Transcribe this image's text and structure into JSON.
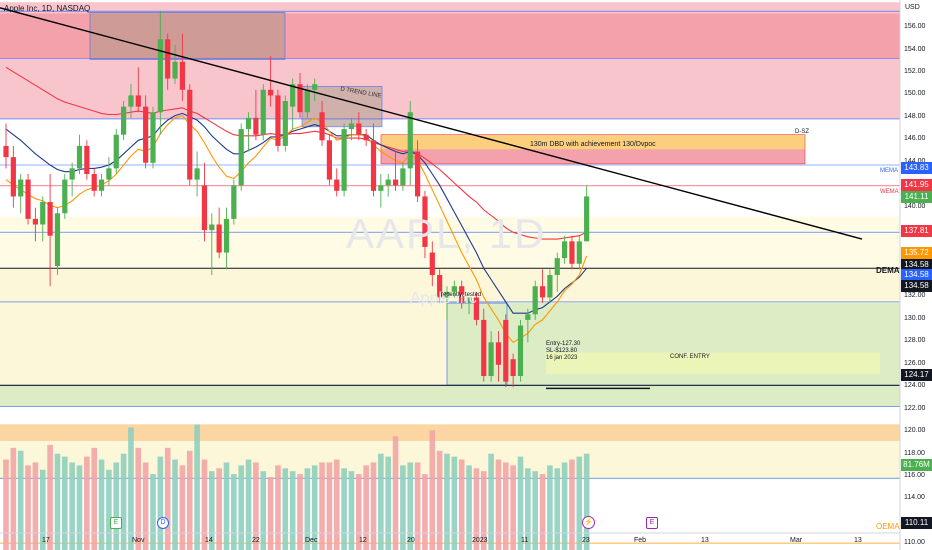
{
  "header": {
    "symbol_title": "Apple Inc, 1D, NASDAQ",
    "currency": "USD"
  },
  "watermark": {
    "ticker": "AAPL, 1D",
    "sub": "Apple Inc"
  },
  "price_axis": {
    "ticks": [
      "156.00",
      "154.00",
      "152.00",
      "150.00",
      "148.00",
      "146.00",
      "144.00",
      "142.00",
      "140.00",
      "138.00",
      "136.00",
      "134.00",
      "132.00",
      "130.00",
      "128.00",
      "126.00",
      "124.00",
      "122.00",
      "120.00",
      "118.00",
      "116.00",
      "114.00",
      "112.00",
      "110.00"
    ]
  },
  "time_axis": {
    "ticks": [
      "17",
      "Nov",
      "14",
      "22",
      "Dec",
      "12",
      "20",
      "2023",
      "11",
      "23",
      "Feb",
      "13",
      "Mar",
      "13"
    ]
  },
  "annotations": {
    "trend_line": "D TREND LINE",
    "dbd_zone": "130m DBD with achievement 130/Dvpoc",
    "dsz": "D-SZ",
    "recently_tested": "recently, tested",
    "entry": "Entry-127.30",
    "sl": "SL-$123.80",
    "date": "16 jan 2023",
    "conf_entry": "CONF. ENTRY",
    "dema": "DEMA",
    "mema": "MEMA",
    "wema": "WEMA",
    "oema": "OEMA"
  },
  "price_tags": [
    {
      "value": "143.83",
      "color": "#2962ff"
    },
    {
      "value": "141.95",
      "color": "#f23645"
    },
    {
      "value": "141.11",
      "color": "#4caf50"
    },
    {
      "value": "137.81",
      "color": "#f23645"
    },
    {
      "value": "135.72",
      "color": "#ff9800"
    },
    {
      "value": "134.58",
      "color": "#131722"
    },
    {
      "value": "134.58",
      "color": "#2962ff"
    },
    {
      "value": "134.58",
      "color": "#131722"
    },
    {
      "value": "124.17",
      "color": "#131722"
    },
    {
      "value": "81.76M",
      "color": "#4caf50"
    },
    {
      "value": "110.11",
      "color": "#131722"
    }
  ],
  "event_markers": [
    "E",
    "D",
    "E"
  ],
  "colors": {
    "up": "#4caf50",
    "down": "#f23645",
    "trend": "#000000",
    "ema_fast": "#ff9800",
    "ema_slow": "#1e3a8a",
    "ema_red": "#f23645"
  },
  "chart_data": {
    "type": "candlestick",
    "title": "Apple Inc, 1D, NASDAQ",
    "candles": [
      {
        "o": 145.5,
        "h": 147.5,
        "l": 143.5,
        "c": 144.5
      },
      {
        "o": 144.5,
        "h": 145.5,
        "l": 140.0,
        "c": 141.0
      },
      {
        "o": 141.0,
        "h": 143.0,
        "l": 139.5,
        "c": 142.5
      },
      {
        "o": 142.5,
        "h": 143.0,
        "l": 138.5,
        "c": 139.0
      },
      {
        "o": 139.0,
        "h": 140.0,
        "l": 137.0,
        "c": 138.5
      },
      {
        "o": 138.5,
        "h": 141.0,
        "l": 137.0,
        "c": 140.5
      },
      {
        "o": 140.5,
        "h": 143.0,
        "l": 133.0,
        "c": 137.5
      },
      {
        "o": 134.8,
        "h": 140.0,
        "l": 134.0,
        "c": 139.5
      },
      {
        "o": 139.5,
        "h": 143.0,
        "l": 139.0,
        "c": 142.5
      },
      {
        "o": 142.5,
        "h": 144.0,
        "l": 141.0,
        "c": 143.5
      },
      {
        "o": 143.5,
        "h": 146.5,
        "l": 143.0,
        "c": 145.5
      },
      {
        "o": 145.5,
        "h": 146.0,
        "l": 142.5,
        "c": 143.0
      },
      {
        "o": 143.0,
        "h": 143.5,
        "l": 141.0,
        "c": 141.5
      },
      {
        "o": 141.5,
        "h": 143.0,
        "l": 141.0,
        "c": 142.5
      },
      {
        "o": 142.5,
        "h": 144.5,
        "l": 142.0,
        "c": 143.5
      },
      {
        "o": 143.5,
        "h": 147.0,
        "l": 143.0,
        "c": 146.5
      },
      {
        "o": 146.5,
        "h": 149.5,
        "l": 146.0,
        "c": 149.0
      },
      {
        "o": 149.0,
        "h": 151.0,
        "l": 148.0,
        "c": 150.0
      },
      {
        "o": 150.0,
        "h": 152.5,
        "l": 148.5,
        "c": 149.0
      },
      {
        "o": 149.0,
        "h": 150.0,
        "l": 143.5,
        "c": 144.0
      },
      {
        "o": 144.0,
        "h": 149.0,
        "l": 143.5,
        "c": 148.5
      },
      {
        "o": 148.5,
        "h": 157.5,
        "l": 146.5,
        "c": 155.0
      },
      {
        "o": 155.0,
        "h": 155.5,
        "l": 150.5,
        "c": 151.5
      },
      {
        "o": 151.5,
        "h": 154.5,
        "l": 151.0,
        "c": 153.0
      },
      {
        "o": 153.0,
        "h": 155.5,
        "l": 149.5,
        "c": 150.5
      },
      {
        "o": 150.5,
        "h": 151.0,
        "l": 142.0,
        "c": 142.5
      },
      {
        "o": 142.5,
        "h": 145.0,
        "l": 141.0,
        "c": 143.5
      },
      {
        "o": 142.0,
        "h": 144.0,
        "l": 137.0,
        "c": 138.0
      },
      {
        "o": 138.0,
        "h": 139.5,
        "l": 134.0,
        "c": 138.5
      },
      {
        "o": 138.5,
        "h": 140.0,
        "l": 135.5,
        "c": 136.0
      },
      {
        "o": 136.0,
        "h": 140.0,
        "l": 134.5,
        "c": 139.0
      },
      {
        "o": 139.0,
        "h": 142.5,
        "l": 138.5,
        "c": 142.0
      },
      {
        "o": 142.0,
        "h": 147.5,
        "l": 141.5,
        "c": 147.0
      },
      {
        "o": 147.0,
        "h": 148.5,
        "l": 145.0,
        "c": 148.0
      },
      {
        "o": 148.0,
        "h": 150.5,
        "l": 146.0,
        "c": 146.5
      },
      {
        "o": 146.5,
        "h": 151.0,
        "l": 146.0,
        "c": 150.5
      },
      {
        "o": 150.5,
        "h": 153.5,
        "l": 149.0,
        "c": 150.0
      },
      {
        "o": 150.0,
        "h": 150.5,
        "l": 145.0,
        "c": 145.5
      },
      {
        "o": 145.5,
        "h": 150.0,
        "l": 145.0,
        "c": 149.5
      },
      {
        "o": 149.0,
        "h": 151.5,
        "l": 147.0,
        "c": 151.0
      },
      {
        "o": 151.0,
        "h": 152.0,
        "l": 148.0,
        "c": 148.5
      },
      {
        "o": 148.5,
        "h": 151.0,
        "l": 148.0,
        "c": 150.5
      },
      {
        "o": 150.5,
        "h": 151.5,
        "l": 149.5,
        "c": 151.0
      },
      {
        "o": 148.5,
        "h": 149.5,
        "l": 145.5,
        "c": 146.0
      },
      {
        "o": 146.0,
        "h": 146.5,
        "l": 142.0,
        "c": 142.5
      },
      {
        "o": 142.5,
        "h": 143.5,
        "l": 141.0,
        "c": 141.5
      },
      {
        "o": 141.5,
        "h": 147.5,
        "l": 141.0,
        "c": 147.0
      },
      {
        "o": 147.0,
        "h": 148.0,
        "l": 146.0,
        "c": 147.5
      },
      {
        "o": 147.5,
        "h": 148.5,
        "l": 146.0,
        "c": 146.5
      },
      {
        "o": 146.5,
        "h": 147.0,
        "l": 145.5,
        "c": 146.0
      },
      {
        "o": 146.0,
        "h": 147.5,
        "l": 141.0,
        "c": 141.5
      },
      {
        "o": 141.5,
        "h": 143.0,
        "l": 140.0,
        "c": 142.0
      },
      {
        "o": 142.0,
        "h": 143.0,
        "l": 141.0,
        "c": 142.5
      },
      {
        "o": 142.5,
        "h": 145.0,
        "l": 141.5,
        "c": 142.0
      },
      {
        "o": 142.0,
        "h": 144.0,
        "l": 141.5,
        "c": 143.5
      },
      {
        "o": 143.5,
        "h": 149.5,
        "l": 142.0,
        "c": 148.5
      },
      {
        "o": 145.0,
        "h": 146.0,
        "l": 140.5,
        "c": 141.0
      },
      {
        "o": 141.0,
        "h": 141.5,
        "l": 135.5,
        "c": 136.5
      },
      {
        "o": 136.0,
        "h": 137.0,
        "l": 133.0,
        "c": 134.0
      },
      {
        "o": 134.0,
        "h": 134.5,
        "l": 131.5,
        "c": 132.0
      },
      {
        "o": 132.0,
        "h": 133.0,
        "l": 130.0,
        "c": 132.5
      },
      {
        "o": 132.5,
        "h": 133.5,
        "l": 132.0,
        "c": 133.0
      },
      {
        "o": 133.0,
        "h": 133.5,
        "l": 131.0,
        "c": 131.5
      },
      {
        "o": 131.5,
        "h": 132.0,
        "l": 130.5,
        "c": 132.0
      },
      {
        "o": 132.0,
        "h": 132.5,
        "l": 129.5,
        "c": 130.0
      },
      {
        "o": 130.0,
        "h": 131.0,
        "l": 124.5,
        "c": 125.0
      },
      {
        "o": 125.0,
        "h": 129.0,
        "l": 124.5,
        "c": 128.0
      },
      {
        "o": 128.0,
        "h": 129.0,
        "l": 124.5,
        "c": 126.0
      },
      {
        "o": 130.0,
        "h": 130.5,
        "l": 124.0,
        "c": 124.5
      },
      {
        "o": 126.5,
        "h": 127.0,
        "l": 124.0,
        "c": 125.0
      },
      {
        "o": 125.0,
        "h": 130.0,
        "l": 124.5,
        "c": 129.5
      },
      {
        "o": 130.0,
        "h": 131.0,
        "l": 128.0,
        "c": 130.5
      },
      {
        "o": 130.5,
        "h": 133.5,
        "l": 130.0,
        "c": 133.0
      },
      {
        "o": 133.0,
        "h": 134.5,
        "l": 131.5,
        "c": 132.0
      },
      {
        "o": 132.0,
        "h": 134.5,
        "l": 131.5,
        "c": 134.0
      },
      {
        "o": 134.0,
        "h": 136.0,
        "l": 132.5,
        "c": 135.5
      },
      {
        "o": 135.5,
        "h": 137.5,
        "l": 135.0,
        "c": 137.0
      },
      {
        "o": 137.0,
        "h": 137.5,
        "l": 134.5,
        "c": 135.0
      },
      {
        "o": 135.0,
        "h": 137.5,
        "l": 134.5,
        "c": 137.0
      },
      {
        "o": 137.0,
        "h": 142.0,
        "l": 137.0,
        "c": 141.0
      }
    ],
    "volume": [
      62,
      70,
      68,
      58,
      60,
      55,
      72,
      66,
      64,
      60,
      58,
      64,
      70,
      62,
      55,
      60,
      66,
      84,
      70,
      60,
      52,
      64,
      70,
      62,
      58,
      68,
      86,
      62,
      54,
      56,
      60,
      52,
      58,
      62,
      60,
      54,
      50,
      58,
      56,
      54,
      52,
      56,
      58,
      60,
      60,
      62,
      56,
      54,
      52,
      58,
      60,
      66,
      64,
      78,
      58,
      60,
      60,
      52,
      82,
      68,
      66,
      64,
      62,
      58,
      56,
      54,
      66,
      62,
      60,
      58,
      64,
      56,
      54,
      52,
      58,
      56,
      60,
      62,
      64,
      66
    ],
    "volume_max": 100,
    "trend_line": {
      "from": 157.8,
      "to": 137.2
    },
    "price_range": [
      109.5,
      158.5
    ],
    "ema_fast": [
      142.5,
      142,
      141.6,
      141.2,
      140.8,
      140.6,
      140.2,
      140,
      140.2,
      140.6,
      141.2,
      141.6,
      141.8,
      142,
      142.4,
      143,
      143.8,
      144.6,
      145.2,
      145,
      145.4,
      146.6,
      147.4,
      148,
      148.2,
      147.4,
      146.8,
      145.8,
      144.6,
      143.6,
      142.8,
      142.6,
      143.2,
      144,
      144.6,
      145.4,
      146.2,
      146,
      146.4,
      147,
      147.2,
      147.6,
      148,
      147.6,
      146.8,
      146,
      146.2,
      146.5,
      146.5,
      146.4,
      145.6,
      145,
      144.6,
      144.2,
      144,
      144.8,
      144.2,
      143,
      141.6,
      140.2,
      138.8,
      137.4,
      136,
      134.8,
      133.6,
      132,
      131,
      130,
      128.8,
      128,
      128.4,
      128.8,
      129.6,
      130,
      130.8,
      131.6,
      132.6,
      133.2,
      134,
      135.7
    ],
    "ema_slow": [
      147,
      146.5,
      146,
      145.4,
      144.8,
      144.3,
      143.8,
      143.4,
      143.2,
      143.2,
      143.4,
      143.5,
      143.5,
      143.6,
      143.8,
      144.2,
      144.8,
      145.4,
      146,
      146.2,
      146.4,
      147.2,
      147.8,
      148.2,
      148.4,
      148.1,
      147.8,
      147.2,
      146.4,
      145.8,
      145.2,
      144.8,
      144.8,
      145.1,
      145.4,
      145.8,
      146.3,
      146.3,
      146.5,
      146.8,
      147,
      147.2,
      147.4,
      147.2,
      146.8,
      146.4,
      146.4,
      146.5,
      146.5,
      146.5,
      146,
      145.6,
      145.3,
      145,
      144.8,
      145,
      144.7,
      144,
      143,
      142,
      140.8,
      139.6,
      138.4,
      137.2,
      136,
      134.6,
      133.6,
      132.6,
      131.6,
      130.6,
      130.6,
      130.6,
      130.9,
      131.1,
      131.6,
      132.1,
      132.8,
      133.3,
      133.8,
      134.6
    ],
    "ema_red": [
      152.5,
      152.1,
      151.7,
      151.3,
      150.9,
      150.5,
      150.1,
      149.7,
      149.4,
      149.2,
      149,
      148.8,
      148.6,
      148.4,
      148.3,
      148.3,
      148.4,
      148.5,
      148.6,
      148.5,
      148.4,
      148.6,
      148.7,
      148.8,
      148.9,
      148.6,
      148.4,
      148,
      147.6,
      147.2,
      146.8,
      146.5,
      146.4,
      146.4,
      146.4,
      146.5,
      146.6,
      146.5,
      146.5,
      146.6,
      146.6,
      146.7,
      146.8,
      146.7,
      146.5,
      146.2,
      146.2,
      146.2,
      146.2,
      146.1,
      145.8,
      145.6,
      145.4,
      145.2,
      145,
      145.1,
      144.8,
      144.4,
      143.9,
      143.4,
      142.8,
      142.2,
      141.6,
      141,
      140.5,
      139.8,
      139.3,
      138.8,
      138.2,
      137.8,
      137.6,
      137.4,
      137.3,
      137.2,
      137.2,
      137.2,
      137.3,
      137.4,
      137.5,
      137.8
    ]
  }
}
